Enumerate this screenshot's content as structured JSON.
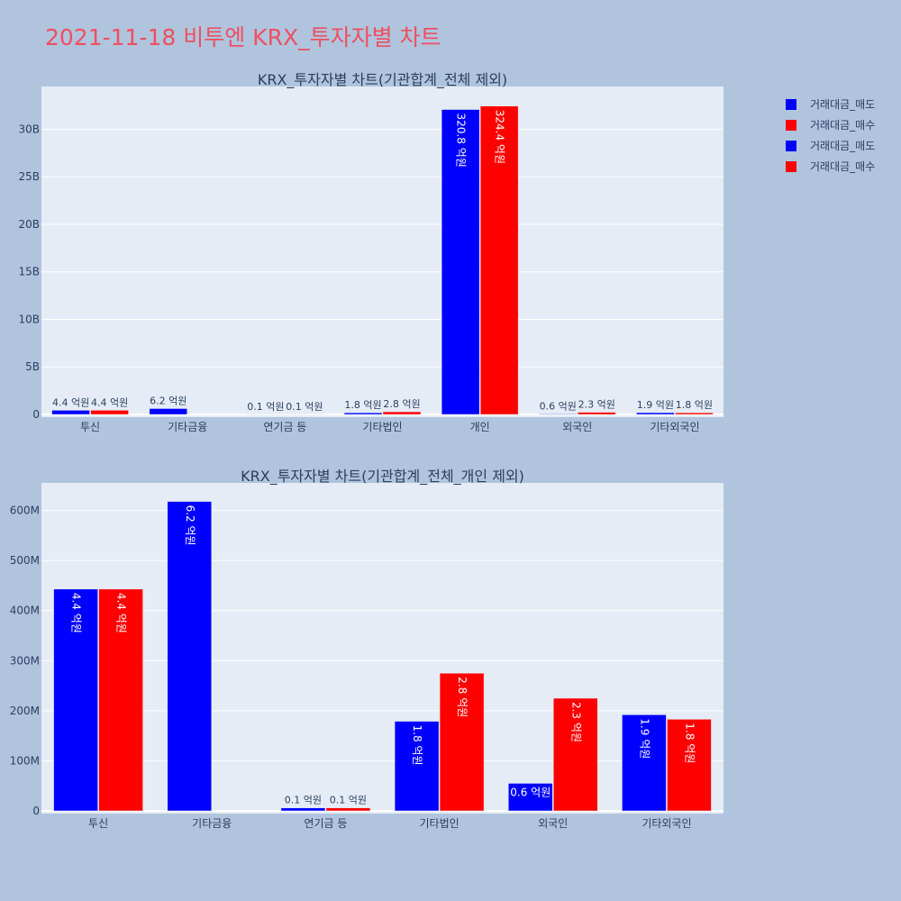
{
  "page_title": "2021-11-18 비투엔 KRX_투자자별 차트",
  "legend": [
    {
      "label": "거래대금_매도",
      "color": "#0000ff"
    },
    {
      "label": "거래대금_매수",
      "color": "#ff0000"
    },
    {
      "label": "거래대금_매도",
      "color": "#0000ff"
    },
    {
      "label": "거래대금_매수",
      "color": "#ff0000"
    }
  ],
  "chart_data": [
    {
      "type": "bar",
      "title": "KRX_투자자별 차트(기관합계_전체 제외)",
      "categories": [
        "투신",
        "기타금융",
        "연기금 등",
        "기타법인",
        "개인",
        "외국인",
        "기타외국인"
      ],
      "ylim": [
        0,
        34500000000
      ],
      "yticks": [
        0,
        5000000000,
        10000000000,
        15000000000,
        20000000000,
        25000000000,
        30000000000
      ],
      "ytick_labels": [
        "0",
        "5B",
        "10B",
        "15B",
        "20B",
        "25B",
        "30B"
      ],
      "grid": true,
      "series": [
        {
          "name": "거래대금_매도",
          "color": "#0000ff",
          "values": [
            440000000,
            620000000,
            10000000,
            180000000,
            32080000000,
            60000000,
            190000000
          ],
          "labels": [
            "4.4 억원",
            "6.2 억원",
            "0.1 억원",
            "1.8 억원",
            "320.8 억원",
            "0.6 억원",
            "1.9 억원"
          ]
        },
        {
          "name": "거래대금_매수",
          "color": "#ff0000",
          "values": [
            440000000,
            0,
            10000000,
            280000000,
            32440000000,
            230000000,
            180000000
          ],
          "labels": [
            "4.4 억원",
            "",
            "0.1 억원",
            "2.8 억원",
            "324.4 억원",
            "2.3 억원",
            "1.8 억원"
          ]
        }
      ]
    },
    {
      "type": "bar",
      "title": "KRX_투자자별 차트(기관합계_전체_개인 제외)",
      "categories": [
        "투신",
        "기타금융",
        "연기금 등",
        "기타법인",
        "외국인",
        "기타외국인"
      ],
      "ylim": [
        0,
        655000000
      ],
      "yticks": [
        0,
        100000000,
        200000000,
        300000000,
        400000000,
        500000000,
        600000000
      ],
      "ytick_labels": [
        "0",
        "100M",
        "200M",
        "300M",
        "400M",
        "500M",
        "600M"
      ],
      "grid": true,
      "series": [
        {
          "name": "거래대금_매도",
          "color": "#0000ff",
          "values": [
            443000000,
            618000000,
            6000000,
            179000000,
            55000000,
            192000000
          ],
          "labels": [
            "4.4 억원",
            "6.2 억원",
            "0.1 억원",
            "1.8 억원",
            "0.6 억원",
            "1.9 억원"
          ]
        },
        {
          "name": "거래대금_매수",
          "color": "#ff0000",
          "values": [
            443000000,
            0,
            6000000,
            275000000,
            225000000,
            183000000
          ],
          "labels": [
            "4.4 억원",
            "",
            "0.1 억원",
            "2.8 억원",
            "2.3 억원",
            "1.8 억원"
          ]
        }
      ]
    }
  ]
}
